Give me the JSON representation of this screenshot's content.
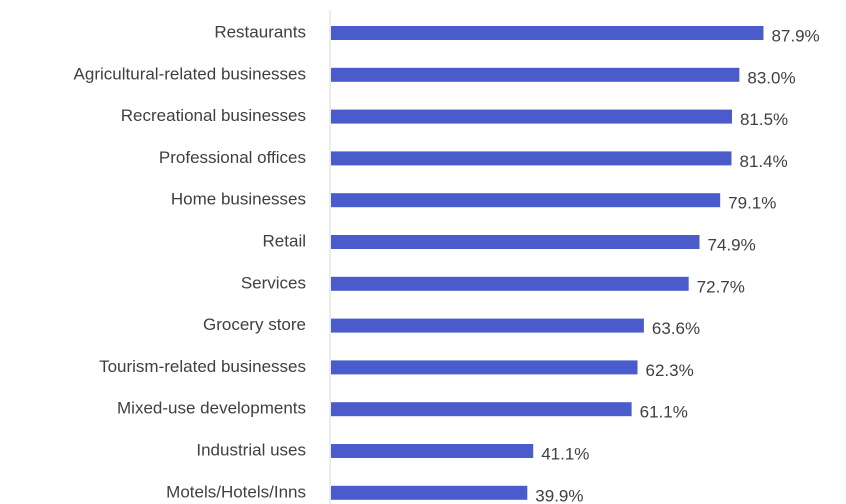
{
  "chart_data": {
    "type": "bar",
    "orientation": "horizontal",
    "categories": [
      "Restaurants",
      "Agricultural-related businesses",
      "Recreational businesses",
      "Professional offices",
      "Home businesses",
      "Retail",
      "Services",
      "Grocery store",
      "Tourism-related businesses",
      "Mixed-use developments",
      "Industrial uses",
      "Motels/Hotels/Inns"
    ],
    "values": [
      87.9,
      83.0,
      81.5,
      81.4,
      79.1,
      74.9,
      72.7,
      63.6,
      62.3,
      61.1,
      41.1,
      39.9
    ],
    "value_labels": [
      "87.9%",
      "83.0%",
      "81.5%",
      "81.4%",
      "79.1%",
      "74.9%",
      "72.7%",
      "63.6%",
      "62.3%",
      "61.1%",
      "41.1%",
      "39.9%"
    ],
    "xlim": [
      0,
      100
    ],
    "unit": "%",
    "grid": false,
    "legend": "none",
    "bar_color": "#4a5ccc",
    "label_color": "#404040",
    "axis_color": "#d9d9d9"
  }
}
